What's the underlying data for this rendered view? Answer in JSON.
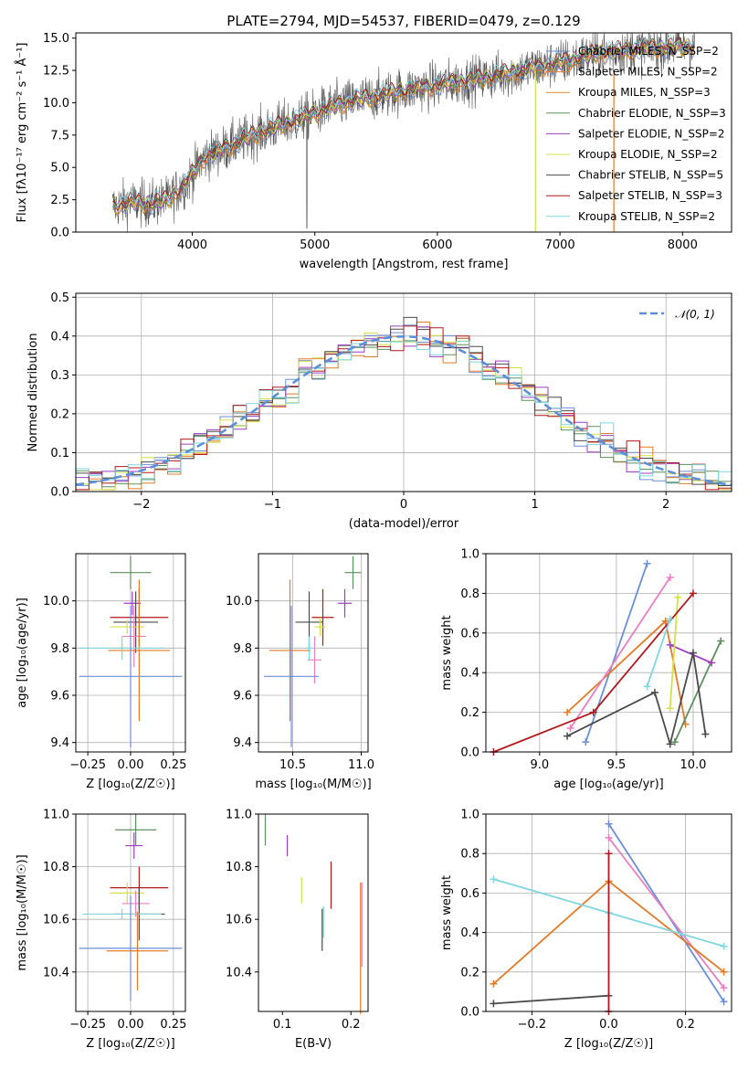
{
  "chart_data": [
    {
      "type": "line",
      "id": "spectrum",
      "title": "PLATE=2794, MJD=54537, FIBERID=0479, z=0.129",
      "xlabel": "wavelength [Angstrom, rest frame]",
      "ylabel": "Flux [fλ10⁻¹⁷ erg cm⁻² s⁻¹ Å⁻¹]",
      "xlim": [
        3050,
        8400
      ],
      "ylim": [
        0,
        15.4
      ],
      "xticks": [
        4000,
        5000,
        6000,
        7000,
        8000
      ],
      "yticks": [
        0.0,
        2.5,
        5.0,
        7.5,
        10.0,
        12.5,
        15.0
      ],
      "ytick_labels": [
        "0.0",
        "2.5",
        "5.0",
        "7.5",
        "10.0",
        "12.5",
        "15.0"
      ],
      "grid": false,
      "legend": "top-right",
      "continuum": {
        "x": [
          3350,
          3500,
          3650,
          3800,
          3950,
          4100,
          4300,
          4500,
          4700,
          4900,
          5100,
          5300,
          5500,
          5700,
          5900,
          6100,
          6300,
          6500,
          6700,
          6900,
          7100,
          7300,
          7500,
          7700,
          7900,
          8100
        ],
        "y": [
          2.0,
          2.3,
          2.2,
          2.5,
          3.8,
          5.8,
          6.6,
          7.5,
          8.2,
          8.8,
          9.6,
          10.1,
          10.5,
          10.9,
          11.2,
          11.5,
          11.8,
          12.1,
          12.5,
          12.9,
          13.3,
          13.8,
          14.0,
          14.2,
          14.3,
          14.4
        ]
      },
      "series": [
        {
          "name": "Chabrier MILES, N_SSP=2",
          "color": "#6c8ed6"
        },
        {
          "name": "Salpeter MILES, N_SSP=2",
          "color": "#e07b2a"
        },
        {
          "name": "Kroupa MILES, N_SSP=3",
          "color": "#d98a2b"
        },
        {
          "name": "Chabrier ELODIE, N_SSP=3",
          "color": "#5e8f5e"
        },
        {
          "name": "Salpeter ELODIE, N_SSP=2",
          "color": "#9b3fc0"
        },
        {
          "name": "Kroupa ELODIE, N_SSP=2",
          "color": "#d4e04a"
        },
        {
          "name": "Chabrier STELIB, N_SSP=5",
          "color": "#4a4a4a"
        },
        {
          "name": "Salpeter STELIB, N_SSP=3",
          "color": "#b0191e"
        },
        {
          "name": "Kroupa STELIB, N_SSP=2",
          "color": "#7fd6dc"
        }
      ]
    },
    {
      "type": "histogram",
      "id": "residuals",
      "xlabel": "(data-model)/error",
      "ylabel": "Normed distribution",
      "xlim": [
        -2.5,
        2.5
      ],
      "ylim": [
        0,
        0.51
      ],
      "xticks": [
        -2,
        -1,
        0,
        1,
        2
      ],
      "xtick_labels": [
        "−2",
        "−1",
        "0",
        "1",
        "2"
      ],
      "yticks": [
        0.0,
        0.1,
        0.2,
        0.3,
        0.4,
        0.5
      ],
      "ytick_labels": [
        "0.0",
        "0.1",
        "0.2",
        "0.3",
        "0.4",
        "0.5"
      ],
      "grid": true,
      "legend": "top-right",
      "legend_label": "𝒩(0, 1)",
      "reference_curve": {
        "name": "N(0,1)",
        "color": "#5b8fd6",
        "style": "dashed"
      },
      "bin_width": 0.1,
      "bin_start": -2.5
    },
    {
      "type": "scatter",
      "id": "z-age",
      "xlabel": "Z [log₁₀(Z/Z☉)]",
      "ylabel": "age  [log₁₀(age/yr)]",
      "xlim": [
        -0.32,
        0.32
      ],
      "ylim": [
        9.36,
        10.2
      ],
      "xticks": [
        -0.25,
        0.0,
        0.25
      ],
      "xtick_labels": [
        "−0.25",
        "0.00",
        "0.25"
      ],
      "yticks": [
        9.4,
        9.6,
        9.8,
        10.0
      ],
      "ytick_labels": [
        "9.4",
        "9.6",
        "9.8",
        "10.0"
      ],
      "grid": true,
      "points": [
        {
          "x": 0.0,
          "y": 10.12,
          "xerr": 0.12,
          "yerr": 0.07,
          "color": "#5e8f5e"
        },
        {
          "x": 0.01,
          "y": 9.99,
          "xerr": 0.05,
          "yerr": 0.05,
          "color": "#9b3fc0"
        },
        {
          "x": 0.05,
          "y": 9.93,
          "xerr": 0.17,
          "yerr": 0.12,
          "color": "#b0191e"
        },
        {
          "x": 0.03,
          "y": 9.91,
          "xerr": 0.13,
          "yerr": 0.13,
          "color": "#4a4a4a"
        },
        {
          "x": -0.02,
          "y": 9.89,
          "xerr": 0.1,
          "yerr": 0.03,
          "color": "#d4e04a"
        },
        {
          "x": 0.02,
          "y": 9.85,
          "xerr": 0.07,
          "yerr": 0.13,
          "color": "#e87fc1"
        },
        {
          "x": 0.05,
          "y": 9.79,
          "xerr": 0.18,
          "yerr": 0.3,
          "color": "#e07b2a"
        },
        {
          "x": -0.05,
          "y": 9.8,
          "xerr": 0.25,
          "yerr": 0.05,
          "color": "#7fd6dc"
        },
        {
          "x": 0.0,
          "y": 9.68,
          "xerr": 0.3,
          "yerr": 0.3,
          "color": "#6c8ed6"
        }
      ]
    },
    {
      "type": "scatter",
      "id": "mass-age",
      "xlabel": "mass [log₁₀(M/M☉)]",
      "xlim": [
        10.25,
        11.05
      ],
      "ylim": [
        9.36,
        10.2
      ],
      "xticks": [
        10.5,
        11.0
      ],
      "xtick_labels": [
        "10.5",
        "11.0"
      ],
      "yticks": [
        9.4,
        9.6,
        9.8,
        10.0
      ],
      "ytick_labels": [
        "9.4",
        "9.6",
        "9.8",
        "10.0"
      ],
      "grid": true,
      "points": [
        {
          "x": 10.94,
          "y": 10.12,
          "xerr": 0.06,
          "yerr": 0.07,
          "color": "#5e8f5e"
        },
        {
          "x": 10.88,
          "y": 9.99,
          "xerr": 0.05,
          "yerr": 0.06,
          "color": "#9b3fc0"
        },
        {
          "x": 10.72,
          "y": 9.93,
          "xerr": 0.08,
          "yerr": 0.12,
          "color": "#b0191e"
        },
        {
          "x": 10.62,
          "y": 9.91,
          "xerr": 0.1,
          "yerr": 0.13,
          "color": "#4a4a4a"
        },
        {
          "x": 10.7,
          "y": 9.89,
          "xerr": 0.04,
          "yerr": 0.04,
          "color": "#d4e04a"
        },
        {
          "x": 10.66,
          "y": 9.75,
          "xerr": 0.05,
          "yerr": 0.1,
          "color": "#e87fc1"
        },
        {
          "x": 10.48,
          "y": 9.79,
          "xerr": 0.15,
          "yerr": 0.3,
          "color": "#e07b2a"
        },
        {
          "x": 10.62,
          "y": 9.8,
          "xerr": 0.02,
          "yerr": 0.05,
          "color": "#7fd6dc"
        },
        {
          "x": 10.49,
          "y": 9.68,
          "xerr": 0.2,
          "yerr": 0.3,
          "color": "#6c8ed6"
        }
      ]
    },
    {
      "type": "line",
      "id": "age-weight",
      "xlabel": "age  [log₁₀(age/yr)]",
      "ylabel": "mass weight",
      "xlim": [
        8.65,
        10.25
      ],
      "ylim": [
        0,
        1.0
      ],
      "xticks": [
        9.0,
        9.5,
        10.0
      ],
      "xtick_labels": [
        "9.0",
        "9.5",
        "10.0"
      ],
      "yticks": [
        0.0,
        0.2,
        0.4,
        0.6,
        0.8,
        1.0
      ],
      "ytick_labels": [
        "0.0",
        "0.2",
        "0.4",
        "0.6",
        "0.8",
        "1.0"
      ],
      "grid": true,
      "series": [
        {
          "color": "#6c8ed6",
          "x": [
            9.3,
            9.7
          ],
          "y": [
            0.05,
            0.95
          ]
        },
        {
          "color": "#e07b2a",
          "x": [
            9.18,
            9.82,
            9.95
          ],
          "y": [
            0.2,
            0.66,
            0.14
          ]
        },
        {
          "color": "#e87fc1",
          "x": [
            9.2,
            9.85
          ],
          "y": [
            0.12,
            0.88
          ]
        },
        {
          "color": "#5e8f5e",
          "x": [
            9.88,
            10.18
          ],
          "y": [
            0.05,
            0.56
          ]
        },
        {
          "color": "#9b3fc0",
          "x": [
            9.85,
            10.12
          ],
          "y": [
            0.54,
            0.45
          ]
        },
        {
          "color": "#d4e04a",
          "x": [
            9.85,
            9.9
          ],
          "y": [
            0.22,
            0.78
          ]
        },
        {
          "color": "#4a4a4a",
          "x": [
            9.18,
            9.75,
            9.85,
            10.0,
            10.08
          ],
          "y": [
            0.08,
            0.3,
            0.04,
            0.5,
            0.09
          ]
        },
        {
          "color": "#b0191e",
          "x": [
            8.7,
            9.35,
            10.0
          ],
          "y": [
            0.0,
            0.2,
            0.8
          ]
        },
        {
          "color": "#7fd6dc",
          "x": [
            9.7,
            9.85
          ],
          "y": [
            0.33,
            0.67
          ]
        }
      ]
    },
    {
      "type": "scatter",
      "id": "z-mass",
      "xlabel": "Z [log₁₀(Z/Z☉)]",
      "ylabel": "mass [log₁₀(M/M☉)]",
      "xlim": [
        -0.32,
        0.32
      ],
      "ylim": [
        10.25,
        11.0
      ],
      "xticks": [
        -0.25,
        0.0,
        0.25
      ],
      "xtick_labels": [
        "−0.25",
        "0.00",
        "0.25"
      ],
      "yticks": [
        10.4,
        10.6,
        10.8,
        11.0
      ],
      "ytick_labels": [
        "10.4",
        "10.6",
        "10.8",
        "11.0"
      ],
      "grid": true,
      "points": [
        {
          "x": 0.03,
          "y": 10.94,
          "xerr": 0.12,
          "yerr": 0.06,
          "color": "#5e8f5e"
        },
        {
          "x": 0.02,
          "y": 10.88,
          "xerr": 0.05,
          "yerr": 0.05,
          "color": "#9b3fc0"
        },
        {
          "x": 0.05,
          "y": 10.72,
          "xerr": 0.17,
          "yerr": 0.08,
          "color": "#b0191e"
        },
        {
          "x": -0.02,
          "y": 10.7,
          "xerr": 0.1,
          "yerr": 0.04,
          "color": "#d4e04a"
        },
        {
          "x": 0.03,
          "y": 10.66,
          "xerr": 0.08,
          "yerr": 0.05,
          "color": "#e87fc1"
        },
        {
          "x": 0.05,
          "y": 10.62,
          "xerr": 0.15,
          "yerr": 0.1,
          "color": "#4a4a4a"
        },
        {
          "x": -0.05,
          "y": 10.62,
          "xerr": 0.23,
          "yerr": 0.02,
          "color": "#7fd6dc"
        },
        {
          "x": 0.0,
          "y": 10.49,
          "xerr": 0.3,
          "yerr": 0.2,
          "color": "#6c8ed6"
        },
        {
          "x": 0.04,
          "y": 10.48,
          "xerr": 0.18,
          "yerr": 0.15,
          "color": "#e07b2a"
        }
      ]
    },
    {
      "type": "scatter",
      "id": "ebv-mass",
      "xlabel": "E(B-V)",
      "xlim": [
        0.065,
        0.225
      ],
      "ylim": [
        10.25,
        11.0
      ],
      "xticks": [
        0.1,
        0.2
      ],
      "xtick_labels": [
        "0.1",
        "0.2"
      ],
      "yticks": [
        10.4,
        10.6,
        10.8,
        11.0
      ],
      "ytick_labels": [
        "10.4",
        "10.6",
        "10.8",
        "11.0"
      ],
      "grid": false,
      "points": [
        {
          "x": 0.075,
          "y": 10.94,
          "yerr": 0.06,
          "color": "#5e8f5e"
        },
        {
          "x": 0.107,
          "y": 10.88,
          "yerr": 0.04,
          "color": "#9b3fc0"
        },
        {
          "x": 0.128,
          "y": 10.71,
          "yerr": 0.05,
          "color": "#d4e04a"
        },
        {
          "x": 0.158,
          "y": 10.56,
          "yerr": 0.08,
          "color": "#4a4a4a"
        },
        {
          "x": 0.16,
          "y": 10.59,
          "yerr": 0.06,
          "color": "#7fd6dc"
        },
        {
          "x": 0.171,
          "y": 10.73,
          "yerr": 0.09,
          "color": "#b0191e"
        },
        {
          "x": 0.214,
          "y": 10.49,
          "yerr": 0.25,
          "color": "#e07b2a"
        },
        {
          "x": 0.216,
          "y": 10.58,
          "yerr": 0.16,
          "color": "#e87fc1"
        }
      ]
    },
    {
      "type": "line",
      "id": "z-weight",
      "xlabel": "Z [log₁₀(Z/Z☉)]",
      "ylabel": "mass weight",
      "xlim": [
        -0.32,
        0.32
      ],
      "ylim": [
        0,
        1.0
      ],
      "xticks": [
        -0.2,
        0.0,
        0.2
      ],
      "xtick_labels": [
        "−0.2",
        "0.0",
        "0.2"
      ],
      "yticks": [
        0.0,
        0.2,
        0.4,
        0.6,
        0.8,
        1.0
      ],
      "ytick_labels": [
        "0.0",
        "0.2",
        "0.4",
        "0.6",
        "0.8",
        "1.0"
      ],
      "grid": true,
      "series": [
        {
          "color": "#6c8ed6",
          "x": [
            0.0,
            0.3
          ],
          "y": [
            0.95,
            0.05
          ]
        },
        {
          "color": "#e87fc1",
          "x": [
            0.0,
            0.3
          ],
          "y": [
            0.88,
            0.12
          ]
        },
        {
          "color": "#e07b2a",
          "x": [
            -0.3,
            0.0,
            0.3
          ],
          "y": [
            0.14,
            0.66,
            0.2
          ]
        },
        {
          "color": "#7fd6dc",
          "x": [
            -0.3,
            0.0,
            0.3
          ],
          "y": [
            0.67,
            0.5,
            0.33
          ]
        },
        {
          "color": "#4a4a4a",
          "x": [
            -0.3,
            0.0
          ],
          "y": [
            0.04,
            0.08
          ]
        },
        {
          "color": "#b0191e",
          "x": [
            0.0,
            0.0
          ],
          "y": [
            0.0,
            0.8
          ]
        }
      ]
    }
  ]
}
